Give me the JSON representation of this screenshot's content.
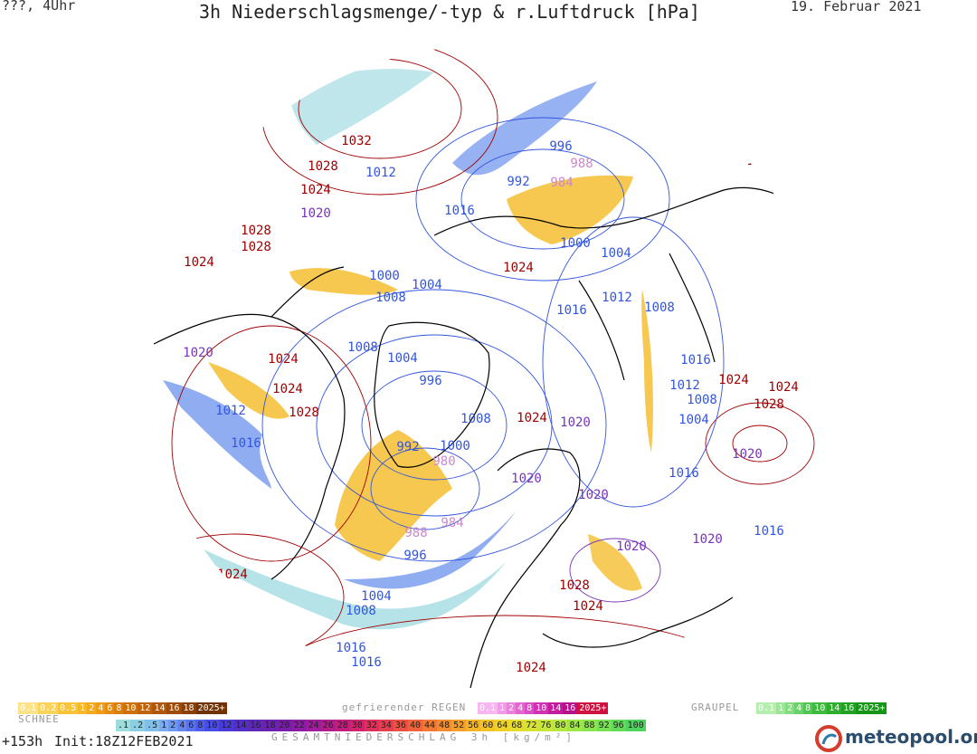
{
  "header": {
    "left": "???, 4Uhr",
    "title": "3h Niederschlagsmenge/-typ & r.Luftdruck [hPa]",
    "date": "19. Februar 2021"
  },
  "map": {
    "isobars": [
      {
        "v": "1032",
        "c": "#a00000"
      },
      {
        "v": "1028",
        "c": "#a00000"
      },
      {
        "v": "1024",
        "c": "#a00000"
      },
      {
        "v": "1012",
        "c": "#3355dd"
      },
      {
        "v": "1020",
        "c": "#7733bb"
      },
      {
        "v": "1028",
        "c": "#a00000"
      },
      {
        "v": "1028",
        "c": "#a00000"
      },
      {
        "v": "1024",
        "c": "#a00000"
      },
      {
        "v": "1016",
        "c": "#3355dd"
      },
      {
        "v": "1000",
        "c": "#3355dd"
      },
      {
        "v": "1004",
        "c": "#3355dd"
      },
      {
        "v": "1008",
        "c": "#3355dd"
      },
      {
        "v": "996",
        "c": "#3355dd"
      },
      {
        "v": "992",
        "c": "#3355dd"
      },
      {
        "v": "988",
        "c": "#cc88cc"
      },
      {
        "v": "984",
        "c": "#cc88cc"
      },
      {
        "v": "1024",
        "c": "#a00000"
      },
      {
        "v": "1000",
        "c": "#3355dd"
      },
      {
        "v": "1004",
        "c": "#3355dd"
      },
      {
        "v": "1024",
        "c": "#a00000"
      },
      {
        "v": "1012",
        "c": "#3355dd"
      },
      {
        "v": "1016",
        "c": "#3355dd"
      },
      {
        "v": "1008",
        "c": "#3355dd"
      },
      {
        "v": "1008",
        "c": "#3355dd"
      },
      {
        "v": "1004",
        "c": "#3355dd"
      },
      {
        "v": "996",
        "c": "#3355dd"
      },
      {
        "v": "1020",
        "c": "#7733bb"
      },
      {
        "v": "1024",
        "c": "#a00000"
      },
      {
        "v": "1024",
        "c": "#a00000"
      },
      {
        "v": "1028",
        "c": "#a00000"
      },
      {
        "v": "1012",
        "c": "#3355dd"
      },
      {
        "v": "1016",
        "c": "#3355dd"
      },
      {
        "v": "1008",
        "c": "#3355dd"
      },
      {
        "v": "1024",
        "c": "#a00000"
      },
      {
        "v": "1020",
        "c": "#7733bb"
      },
      {
        "v": "992",
        "c": "#3355dd"
      },
      {
        "v": "1000",
        "c": "#3355dd"
      },
      {
        "v": "980",
        "c": "#cc88cc"
      },
      {
        "v": "1016",
        "c": "#3355dd"
      },
      {
        "v": "1012",
        "c": "#3355dd"
      },
      {
        "v": "1008",
        "c": "#3355dd"
      },
      {
        "v": "1004",
        "c": "#3355dd"
      },
      {
        "v": "1024",
        "c": "#a00000"
      },
      {
        "v": "1028",
        "c": "#a00000"
      },
      {
        "v": "1024",
        "c": "#a00000"
      },
      {
        "v": "1020",
        "c": "#7733bb"
      },
      {
        "v": "1020",
        "c": "#7733bb"
      },
      {
        "v": "1020",
        "c": "#7733bb"
      },
      {
        "v": "1016",
        "c": "#3355dd"
      },
      {
        "v": "988",
        "c": "#cc88cc"
      },
      {
        "v": "984",
        "c": "#cc88cc"
      },
      {
        "v": "996",
        "c": "#3355dd"
      },
      {
        "v": "1020",
        "c": "#7733bb"
      },
      {
        "v": "1020",
        "c": "#7733bb"
      },
      {
        "v": "1016",
        "c": "#3355dd"
      },
      {
        "v": "1024",
        "c": "#a00000"
      },
      {
        "v": "1028",
        "c": "#a00000"
      },
      {
        "v": "1024",
        "c": "#a00000"
      },
      {
        "v": "1004",
        "c": "#3355dd"
      },
      {
        "v": "1008",
        "c": "#3355dd"
      },
      {
        "v": "1020",
        "c": "#7733bb"
      },
      {
        "v": "1016",
        "c": "#3355dd"
      },
      {
        "v": "1016",
        "c": "#3355dd"
      },
      {
        "v": "1024",
        "c": "#a00000"
      }
    ]
  },
  "legend": {
    "snow": {
      "items": [
        "0.1",
        "0.2",
        "0.5",
        "1",
        "2",
        "4",
        "6",
        "8",
        "10",
        "12",
        "14",
        "16",
        "18",
        "2025+"
      ],
      "colors": [
        "#fde28a",
        "#fbd35c",
        "#f9c43a",
        "#f7b726",
        "#f3a91c",
        "#ee9b16",
        "#e58c12",
        "#da7e0e",
        "#ce700c",
        "#c0630a",
        "#b05708",
        "#9e4b06",
        "#8a3f05",
        "#6e3204"
      ],
      "label": "SCHNEE"
    },
    "freezing_rain": {
      "label": "gefrierender REGEN",
      "items": [
        "0.1",
        "1",
        "2",
        "4",
        "8",
        "10",
        "14",
        "16",
        "2025+"
      ],
      "colors": [
        "#f7b6f0",
        "#f19be6",
        "#ea80dc",
        "#e266d0",
        "#d94cc3",
        "#cf33b3",
        "#c31aa0",
        "#b8108c",
        "#d01040"
      ]
    },
    "graupel": {
      "label": "GRAUPEL",
      "items": [
        "0.1",
        "1",
        "2",
        "4",
        "8",
        "10",
        "14",
        "16",
        "2025+"
      ],
      "colors": [
        "#b6eeb0",
        "#9de598",
        "#84dc80",
        "#6ad268",
        "#52c652",
        "#3eba3e",
        "#2eae2e",
        "#22a222",
        "#169616"
      ]
    },
    "total": {
      "items": [
        ".1",
        ".2",
        ".5",
        "1",
        "2",
        "4",
        "6",
        "8",
        "10",
        "12",
        "14",
        "16",
        "18",
        "20",
        "22",
        "24",
        "26",
        "28",
        "30",
        "32",
        "34",
        "36",
        "40",
        "44",
        "48",
        "52",
        "56",
        "60",
        "64",
        "68",
        "72",
        "76",
        "80",
        "84",
        "88",
        "92",
        "96",
        "100"
      ],
      "colors": [
        "#9fdcdc",
        "#8ccfe3",
        "#7fbfe8",
        "#7aacee",
        "#6f98f0",
        "#6585f0",
        "#5a72ee",
        "#505fea",
        "#4a4ce6",
        "#4a3ad8",
        "#5230c8",
        "#5e28b8",
        "#6b22b0",
        "#7a1eaa",
        "#8c1ca4",
        "#a01c9a",
        "#b41c8c",
        "#c41e7c",
        "#d2246c",
        "#de305c",
        "#e6404e",
        "#ec5242",
        "#f0643a",
        "#f27834",
        "#f38c2e",
        "#f4a02a",
        "#f4b428",
        "#f2c428",
        "#eed22a",
        "#e6dc2e",
        "#d8e234",
        "#c6e63a",
        "#b2e840",
        "#9ee846",
        "#8ae64c",
        "#76e252",
        "#62dc58",
        "#4ed45e"
      ],
      "label": "GESAMTNIEDERSCHLAG 3h [kg/m²]"
    }
  },
  "footer": {
    "forecast": "+153h",
    "init": "Init:18Z12FEB2021",
    "logo": "meteopool.org"
  }
}
